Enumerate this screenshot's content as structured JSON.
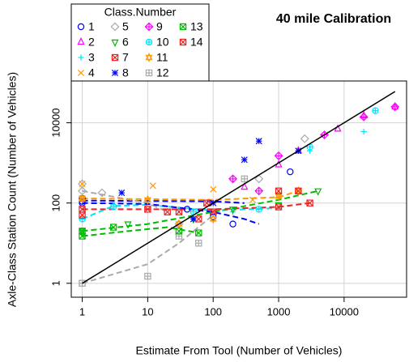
{
  "chart_data": {
    "type": "scatter",
    "title": "40 mile Calibration",
    "x_label": "Estimate From Tool (Number of Vehicles)",
    "y_label": "Axle-Class Station Count (Number of Vehicles)",
    "log_x": true,
    "log_y": true,
    "grid": true,
    "xlim": [
      0.68,
      90000
    ],
    "ylim": [
      0.45,
      110000
    ],
    "xticks": [
      1,
      10,
      100,
      1000,
      10000
    ],
    "yticks": [
      1,
      100,
      10000
    ],
    "legend_title": "Class.Number",
    "legend_position": "top-left",
    "reference_line": {
      "color": "#000000",
      "x": [
        1,
        60000
      ],
      "values": [
        1,
        60000
      ]
    },
    "series": [
      {
        "name": "1",
        "color": "#0000ff",
        "marker": "circle",
        "x": [
          1,
          1,
          1,
          100,
          200,
          1500,
          40
        ],
        "values": [
          130,
          110,
          100,
          45,
          30,
          600,
          70
        ],
        "trend_x": [
          1,
          100,
          300
        ],
        "trend_values": [
          115,
          110,
          100
        ]
      },
      {
        "name": "2",
        "color": "#ff00ff",
        "marker": "triangle",
        "x": [
          300,
          2000,
          8000,
          20000,
          60000,
          1000
        ],
        "values": [
          250,
          2000,
          7000,
          15000,
          25000,
          900
        ]
      },
      {
        "name": "3",
        "color": "#00e5ff",
        "marker": "plus",
        "x": [
          1,
          1,
          3,
          30,
          200,
          3000,
          20000
        ],
        "values": [
          40,
          20,
          90,
          70,
          60,
          2000,
          6000
        ],
        "trend_x": [
          1,
          3,
          10,
          100,
          1000
        ],
        "trend_values": [
          40,
          85,
          90,
          65,
          75
        ]
      },
      {
        "name": "4",
        "color": "#ff9900",
        "marker": "cross",
        "x": [
          1,
          1,
          12,
          100,
          400,
          1000
        ],
        "values": [
          300,
          130,
          270,
          220,
          120,
          150
        ]
      },
      {
        "name": "5",
        "color": "#aaaaaa",
        "marker": "diamond",
        "x": [
          1,
          1,
          2,
          30,
          2500,
          500
        ],
        "values": [
          300,
          200,
          180,
          30,
          4000,
          400
        ],
        "trend_x": [
          1,
          10,
          20
        ],
        "trend_values": [
          200,
          100,
          60
        ]
      },
      {
        "name": "6",
        "color": "#00bb00",
        "marker": "down-triangle",
        "x": [
          1,
          5,
          200,
          1000,
          4000,
          50
        ],
        "values": [
          20,
          30,
          70,
          90,
          200,
          40
        ],
        "trend_x": [
          1,
          10,
          100,
          1000,
          4000
        ],
        "trend_values": [
          20,
          30,
          60,
          120,
          200
        ]
      },
      {
        "name": "7",
        "color": "#ee2222",
        "marker": "boxed-cross",
        "x": [
          1,
          10,
          100,
          1000,
          3000,
          30
        ],
        "values": [
          70,
          70,
          60,
          80,
          100,
          60
        ],
        "trend_x": [
          1,
          10,
          100,
          1000,
          3000
        ],
        "trend_values": [
          70,
          70,
          70,
          80,
          100
        ]
      },
      {
        "name": "8",
        "color": "#0000ff",
        "marker": "asterisk",
        "x": [
          4,
          50,
          300,
          500,
          100,
          2000
        ],
        "values": [
          180,
          40,
          1200,
          3500,
          100,
          2000
        ],
        "trend_x": [
          1,
          10,
          100,
          300,
          500
        ],
        "trend_values": [
          100,
          95,
          60,
          40,
          30
        ]
      },
      {
        "name": "9",
        "color": "#ff00ff",
        "marker": "diamond-plus",
        "x": [
          200,
          1000,
          5000,
          20000,
          60000,
          500
        ],
        "values": [
          400,
          1500,
          5000,
          14000,
          25000,
          200
        ]
      },
      {
        "name": "10",
        "color": "#00e5ff",
        "marker": "circle-plus",
        "x": [
          1,
          3,
          50,
          500,
          3000,
          30000
        ],
        "values": [
          40,
          80,
          60,
          70,
          2500,
          20000
        ]
      },
      {
        "name": "11",
        "color": "#ff9900",
        "marker": "star",
        "x": [
          1,
          10,
          30,
          100,
          1000,
          2000
        ],
        "values": [
          130,
          120,
          30,
          40,
          150,
          200
        ],
        "trend_x": [
          1,
          10,
          100,
          1000,
          2000
        ],
        "trend_values": [
          130,
          125,
          120,
          140,
          200
        ]
      },
      {
        "name": "12",
        "color": "#aaaaaa",
        "marker": "square-plus",
        "x": [
          1,
          10,
          30,
          60,
          300,
          1
        ],
        "values": [
          1,
          1.5,
          15,
          10,
          400,
          1
        ],
        "trend_x": [
          1,
          10,
          30,
          100
        ],
        "trend_values": [
          1,
          3,
          10,
          50
        ]
      },
      {
        "name": "13",
        "color": "#00bb00",
        "marker": "boxed-cross",
        "x": [
          1,
          1,
          3,
          30,
          60
        ],
        "values": [
          15,
          20,
          25,
          20,
          18
        ],
        "trend_x": [
          1,
          5,
          20,
          60
        ],
        "trend_values": [
          15,
          20,
          25,
          18
        ]
      },
      {
        "name": "14",
        "color": "#ee2222",
        "marker": "square-cross",
        "x": [
          1,
          20,
          60,
          1000,
          2000,
          80
        ],
        "values": [
          50,
          60,
          40,
          200,
          200,
          100
        ]
      }
    ]
  }
}
